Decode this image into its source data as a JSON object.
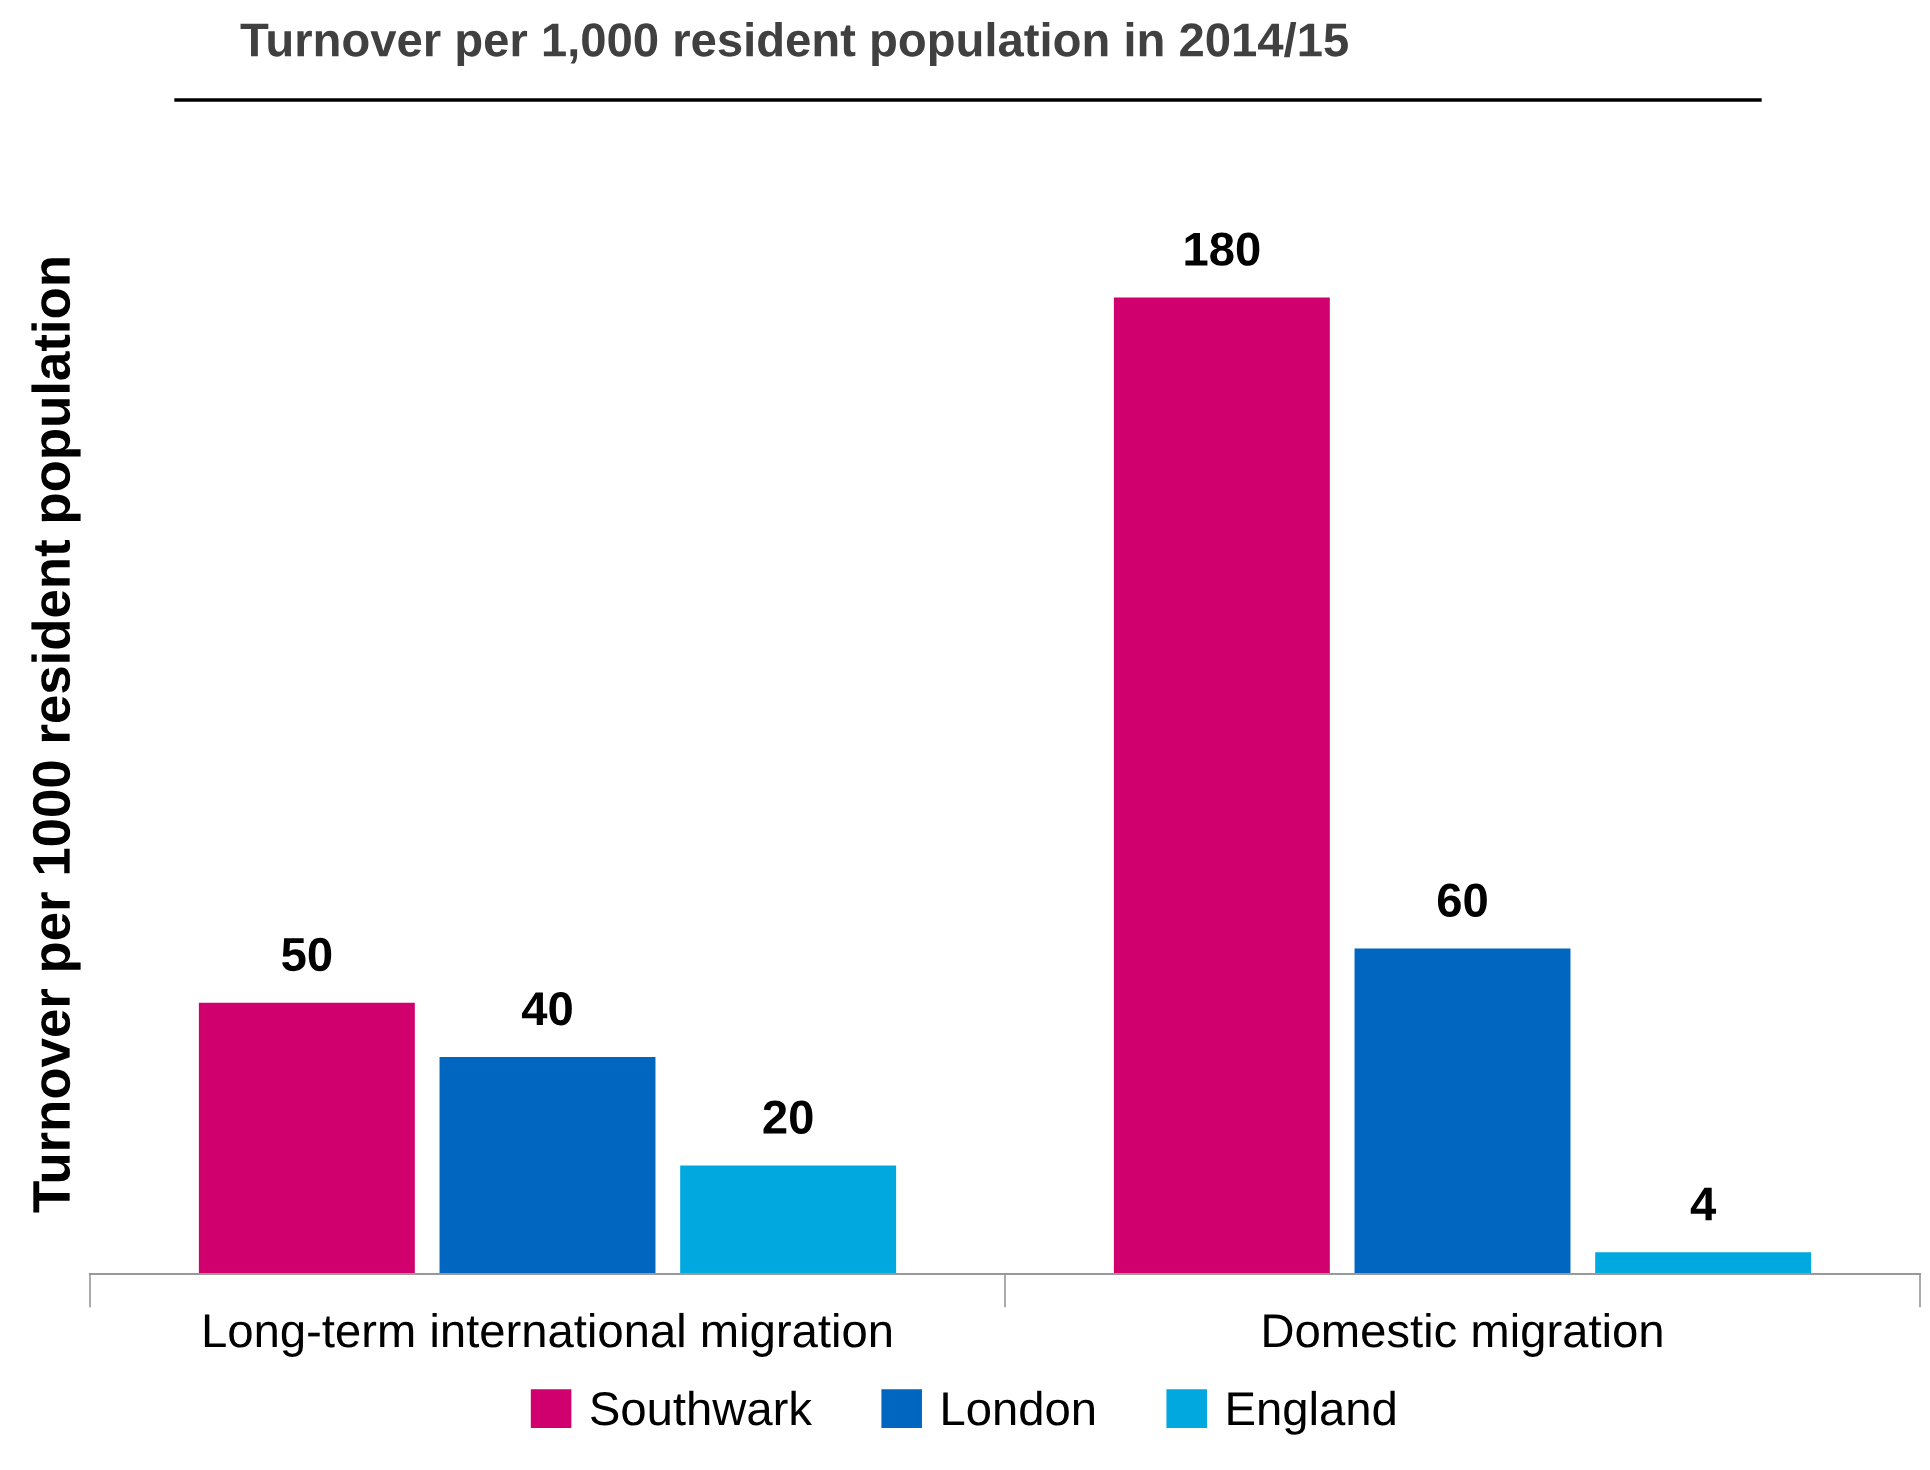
{
  "chart_data": {
    "type": "bar",
    "title": "Turnover per 1,000 resident population in 2014/15",
    "ylabel": "Turnover per 1000 resident population",
    "categories": [
      "Long-term international migration",
      "Domestic migration"
    ],
    "series": [
      {
        "name": "Southwark",
        "color": "#d0006f",
        "values": [
          50,
          180
        ]
      },
      {
        "name": "London",
        "color": "#0066bf",
        "values": [
          40,
          60
        ]
      },
      {
        "name": "England",
        "color": "#00a8e0",
        "values": [
          20,
          4
        ]
      }
    ],
    "data_labels": true,
    "legend": "bottom",
    "grid": false
  }
}
